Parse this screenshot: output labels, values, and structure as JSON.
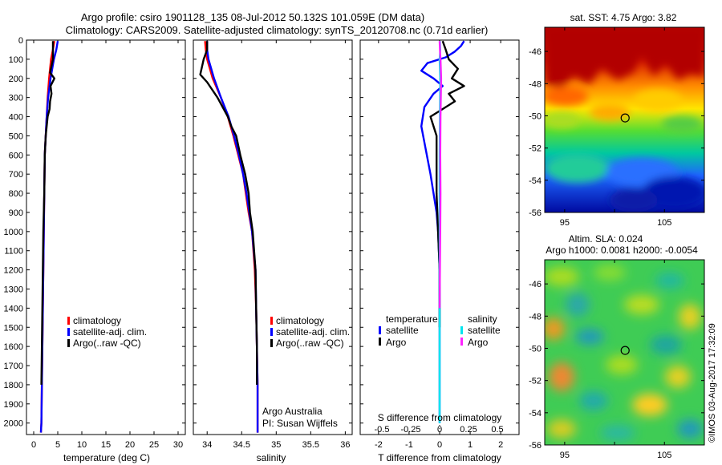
{
  "header": {
    "line1": "Argo profile: csiro 1901128_135 08-Jul-2012 50.132S 101.059E (DM data)",
    "line2": "Climatology: CARS2009. Satellite-adjusted climatology: synTS_20120708.nc (0.71d earlier)"
  },
  "colors": {
    "climatology": "#ff0000",
    "satellite": "#0000ff",
    "argo": "#000000",
    "sal_satellite": "#00e5ee",
    "sal_argo": "#ff22ff"
  },
  "chart_data": [
    {
      "id": "temperature",
      "type": "line",
      "xlabel": "temperature (deg C)",
      "ylabel": "",
      "xlim": [
        -1.5,
        31.5
      ],
      "ylim": [
        2060,
        0
      ],
      "xticks": [
        0,
        5,
        10,
        15,
        20,
        25,
        30
      ],
      "yticks": [
        0,
        100,
        200,
        300,
        400,
        500,
        600,
        700,
        800,
        900,
        1000,
        1100,
        1200,
        1300,
        1400,
        1500,
        1600,
        1700,
        1800,
        1900,
        2000
      ],
      "legend": [
        "climatology",
        "satellite-adj. clim.",
        "Argo(..raw -QC)"
      ],
      "series": [
        {
          "name": "climatology",
          "color": "#ff0000",
          "x": [
            4.3,
            4.0,
            3.6,
            3.2,
            2.9,
            2.7,
            2.5,
            2.3,
            2.2,
            2.1,
            2.0,
            1.9,
            1.8,
            1.7,
            1.6,
            1.5
          ],
          "y": [
            5,
            50,
            100,
            200,
            300,
            400,
            500,
            600,
            800,
            1000,
            1200,
            1400,
            1600,
            1800,
            2000,
            2050
          ]
        },
        {
          "name": "satellite-adj. clim.",
          "color": "#0000ff",
          "x": [
            5.0,
            4.7,
            4.2,
            3.5,
            3.0,
            2.7,
            2.5,
            2.3,
            2.2,
            2.1,
            2.0,
            1.9,
            1.8,
            1.7,
            1.6,
            1.5
          ],
          "y": [
            5,
            50,
            100,
            200,
            300,
            400,
            500,
            600,
            800,
            1000,
            1200,
            1400,
            1600,
            1800,
            2000,
            2050
          ]
        },
        {
          "name": "Argo(..raw -QC)",
          "color": "#000000",
          "x": [
            4.0,
            4.0,
            4.0,
            3.4,
            4.3,
            3.5,
            3.7,
            3.4,
            3.3,
            2.9,
            2.5,
            2.3,
            2.2,
            2.0,
            1.9,
            1.8,
            1.7,
            1.6
          ],
          "y": [
            5,
            50,
            100,
            170,
            200,
            240,
            280,
            320,
            360,
            400,
            500,
            600,
            800,
            1000,
            1200,
            1400,
            1600,
            1800
          ]
        }
      ]
    },
    {
      "id": "salinity",
      "type": "line",
      "xlabel": "salinity",
      "ylabel": "",
      "xlim": [
        33.8,
        36.1
      ],
      "ylim": [
        2060,
        0
      ],
      "xticks": [
        34,
        34.5,
        35,
        35.5,
        36
      ],
      "xtick_labels": [
        "34",
        "34.5",
        "35",
        "35.5",
        "36"
      ],
      "legend": [
        "climatology",
        "satellite-adj. clim.",
        "Argo(..raw -QC)"
      ],
      "annotation": [
        "Argo Australia",
        "PI: Susan Wijffels"
      ],
      "series": [
        {
          "name": "climatology",
          "color": "#ff0000",
          "x": [
            33.97,
            33.98,
            34.0,
            34.08,
            34.2,
            34.3,
            34.38,
            34.45,
            34.52,
            34.56,
            34.6,
            34.65,
            34.69,
            34.71,
            34.72,
            34.73,
            34.73,
            34.73
          ],
          "y": [
            5,
            50,
            100,
            200,
            300,
            400,
            500,
            600,
            700,
            800,
            900,
            1000,
            1200,
            1400,
            1600,
            1800,
            2000,
            2050
          ]
        },
        {
          "name": "satellite-adj. clim.",
          "color": "#0000ff",
          "x": [
            34.0,
            34.0,
            34.02,
            34.1,
            34.2,
            34.31,
            34.39,
            34.46,
            34.52,
            34.57,
            34.61,
            34.65,
            34.7,
            34.71,
            34.72,
            34.73,
            34.73,
            34.73
          ],
          "y": [
            5,
            50,
            100,
            200,
            300,
            400,
            500,
            600,
            700,
            800,
            900,
            1000,
            1200,
            1400,
            1600,
            1800,
            2000,
            2050
          ]
        },
        {
          "name": "Argo(..raw -QC)",
          "color": "#000000",
          "x": [
            34.0,
            34.0,
            33.95,
            33.9,
            34.0,
            34.15,
            34.3,
            34.35,
            34.42,
            34.48,
            34.55,
            34.6,
            34.62,
            34.66,
            34.7,
            34.71,
            34.72,
            34.72
          ],
          "y": [
            5,
            50,
            100,
            180,
            220,
            300,
            400,
            450,
            500,
            600,
            700,
            800,
            900,
            1000,
            1200,
            1400,
            1600,
            1800
          ]
        }
      ]
    },
    {
      "id": "difference",
      "type": "line",
      "xlabel": "T difference from climatology",
      "xlabel_top": "S difference from climatology",
      "xlim": [
        -2.6,
        2.6
      ],
      "ylim": [
        2060,
        0
      ],
      "xticks_T": [
        -2,
        -1,
        0,
        1,
        2
      ],
      "xticks_S": [
        -0.5,
        -0.25,
        0,
        0.25,
        0.5
      ],
      "xtick_labels_S": [
        "-0.5",
        "-0.25",
        "0",
        "0.25",
        "0.5"
      ],
      "legend_titles": [
        "temperature",
        "salinity"
      ],
      "legend": [
        "satellite",
        "Argo",
        "satellite",
        "Argo"
      ],
      "series": [
        {
          "name": "satellite",
          "color": "#0000ff",
          "x": [
            0.8,
            0.7,
            0.5,
            0.2,
            -0.4,
            -0.6,
            -0.2,
            0.1,
            -0.2,
            -0.5,
            -0.6,
            -0.3,
            -0.1,
            -0.05,
            0.0,
            0.0,
            0.0,
            0.0
          ],
          "y": [
            5,
            30,
            60,
            90,
            120,
            160,
            200,
            240,
            280,
            350,
            450,
            700,
            900,
            1000,
            1200,
            1500,
            1800,
            2000
          ]
        },
        {
          "name": "Argo",
          "color": "#000000",
          "x": [
            0.1,
            0.2,
            0.3,
            0.6,
            0.4,
            0.8,
            0.3,
            0.5,
            0.1,
            -0.3,
            -0.1,
            -0.1,
            -0.05,
            0.0,
            0.0
          ],
          "y": [
            5,
            50,
            100,
            150,
            200,
            240,
            280,
            320,
            360,
            400,
            500,
            800,
            1000,
            1200,
            1500
          ]
        },
        {
          "name": "satellite",
          "color": "#00e5ee",
          "x": [
            0.01,
            0.02,
            0.0,
            0.02,
            0.01,
            0.0,
            0.0,
            0.0,
            0.0,
            0.0
          ],
          "y": [
            5,
            50,
            100,
            200,
            400,
            600,
            800,
            1200,
            1600,
            2000
          ]
        },
        {
          "name": "Argo",
          "color": "#ff22ff",
          "x": [
            0.0,
            0.01,
            0.03,
            0.05,
            0.03,
            0.02,
            0.03,
            0.02,
            0.01,
            0.0
          ],
          "y": [
            5,
            50,
            100,
            200,
            400,
            600,
            800,
            1000,
            1200,
            1400
          ]
        }
      ]
    },
    {
      "id": "sst_map",
      "type": "heatmap",
      "title": "sat. SST: 4.75 Argo: 3.82",
      "xticks": [
        95,
        100,
        105
      ],
      "xtick_labels": [
        "95",
        "",
        "105"
      ],
      "yticks": [
        -46,
        -48,
        -50,
        -52,
        -54,
        -56
      ],
      "xlim": [
        93,
        109
      ],
      "ylim": [
        -56,
        -44.5
      ],
      "marker": [
        101.06,
        -50.13
      ]
    },
    {
      "id": "sla_map",
      "type": "heatmap",
      "title_line1": "Altim. SLA: 0.024",
      "title_line2": "Argo h1000: 0.0081 h2000: -0.0054",
      "xticks": [
        95,
        100,
        105
      ],
      "xtick_labels": [
        "95",
        "",
        "105"
      ],
      "yticks": [
        -46,
        -48,
        -50,
        -52,
        -54,
        -56
      ],
      "xlim": [
        93,
        109
      ],
      "ylim": [
        -56,
        -44.5
      ],
      "marker": [
        101.06,
        -50.13
      ]
    }
  ],
  "credit": "©IMOS 03-Aug-2017 17:32:09"
}
